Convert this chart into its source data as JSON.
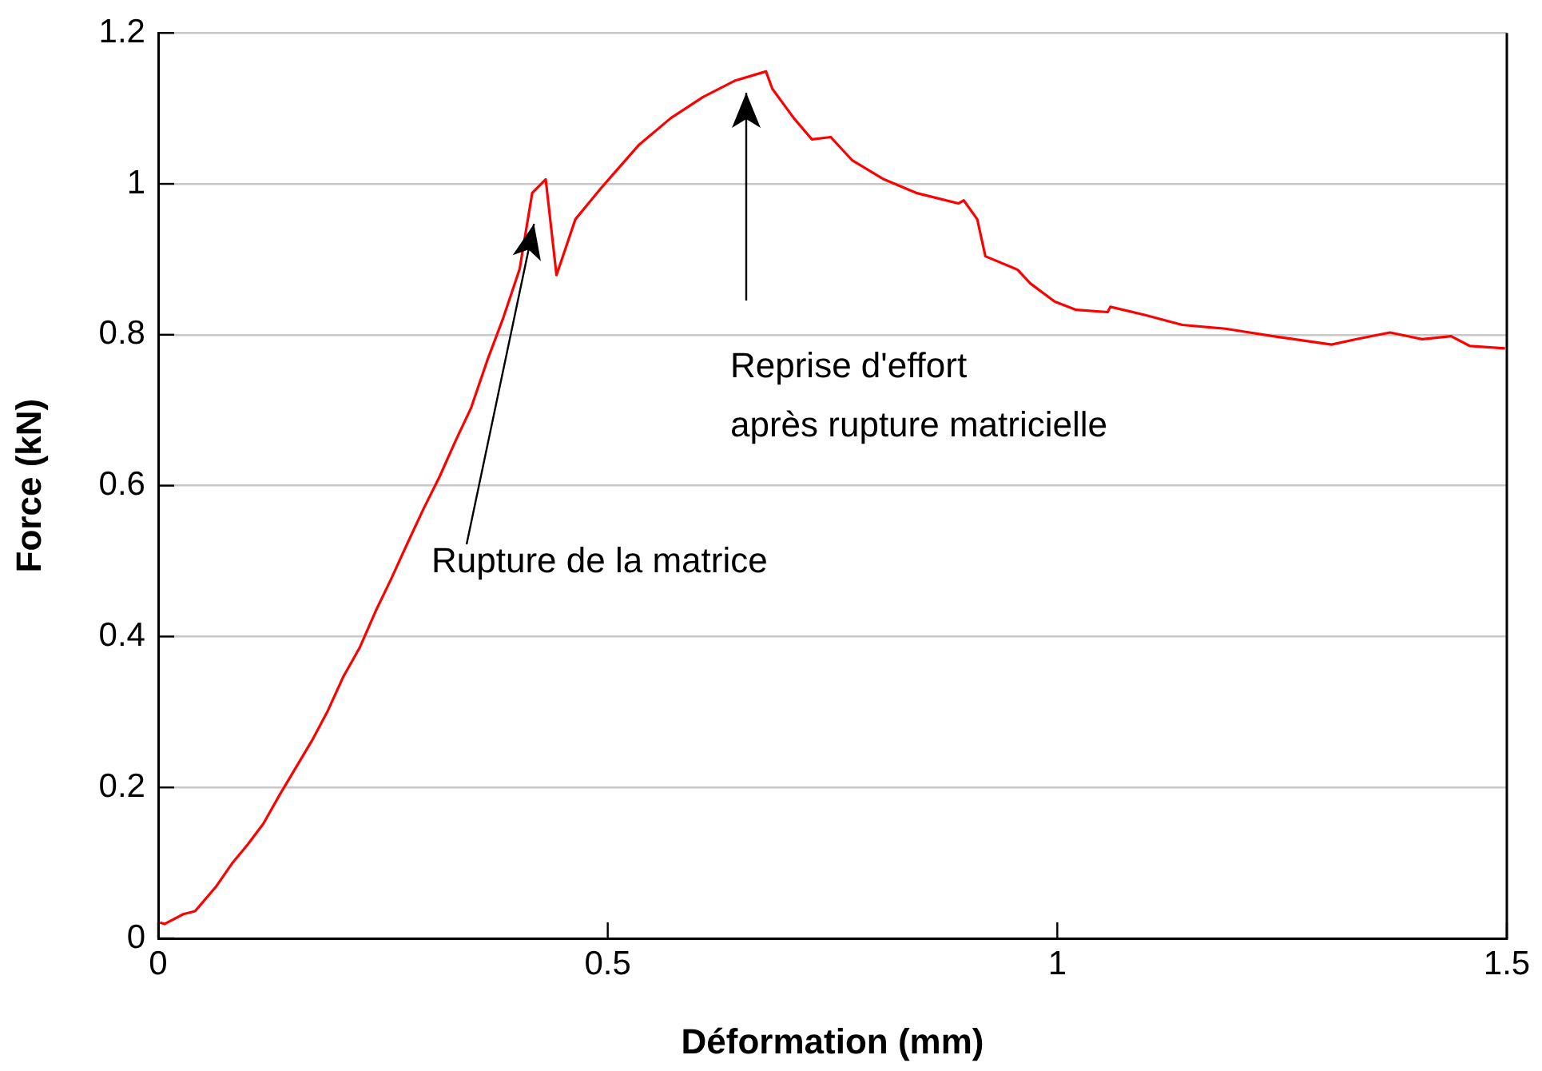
{
  "chart_data": {
    "type": "line",
    "xlabel": "Déformation (mm)",
    "ylabel": "Force (kN)",
    "xlim": [
      0,
      1.5
    ],
    "xticks": [
      0,
      0.5,
      1,
      1.5
    ],
    "ylim": [
      0,
      1.2
    ],
    "yticks": [
      0,
      0.2,
      0.4,
      0.6,
      0.8,
      1,
      1.2
    ],
    "grid": "y",
    "legend": false,
    "marker": "none",
    "line_style": "solid",
    "series": [
      {
        "color": "#ff0000",
        "x": [
          0.002,
          0.007,
          0.028,
          0.041,
          0.064,
          0.082,
          0.1,
          0.117,
          0.135,
          0.153,
          0.171,
          0.188,
          0.206,
          0.224,
          0.242,
          0.259,
          0.277,
          0.295,
          0.313,
          0.331,
          0.348,
          0.366,
          0.384,
          0.402,
          0.416,
          0.431,
          0.443,
          0.464,
          0.493,
          0.535,
          0.57,
          0.606,
          0.642,
          0.676,
          0.683,
          0.707,
          0.727,
          0.748,
          0.772,
          0.807,
          0.843,
          0.89,
          0.896,
          0.911,
          0.92,
          0.956,
          0.97,
          0.997,
          1.021,
          1.056,
          1.059,
          1.098,
          1.139,
          1.187,
          1.24,
          1.305,
          1.332,
          1.37,
          1.406,
          1.438,
          1.459,
          1.498
        ],
        "values": [
          0.021,
          0.019,
          0.032,
          0.036,
          0.068,
          0.099,
          0.125,
          0.152,
          0.19,
          0.226,
          0.262,
          0.3,
          0.347,
          0.385,
          0.434,
          0.476,
          0.523,
          0.569,
          0.612,
          0.66,
          0.703,
          0.766,
          0.823,
          0.887,
          0.988,
          1.006,
          0.879,
          0.953,
          0.995,
          1.052,
          1.087,
          1.115,
          1.137,
          1.149,
          1.126,
          1.087,
          1.059,
          1.062,
          1.031,
          1.006,
          0.988,
          0.974,
          0.978,
          0.953,
          0.904,
          0.886,
          0.868,
          0.844,
          0.833,
          0.83,
          0.837,
          0.826,
          0.813,
          0.808,
          0.798,
          0.787,
          0.794,
          0.803,
          0.794,
          0.798,
          0.785,
          0.782
        ]
      }
    ],
    "annotations": [
      {
        "text": "Rupture de la matrice",
        "x": 0.418,
        "y": 0.946
      },
      "Reprise d'effort\naprès rupture matricielle"
    ]
  }
}
